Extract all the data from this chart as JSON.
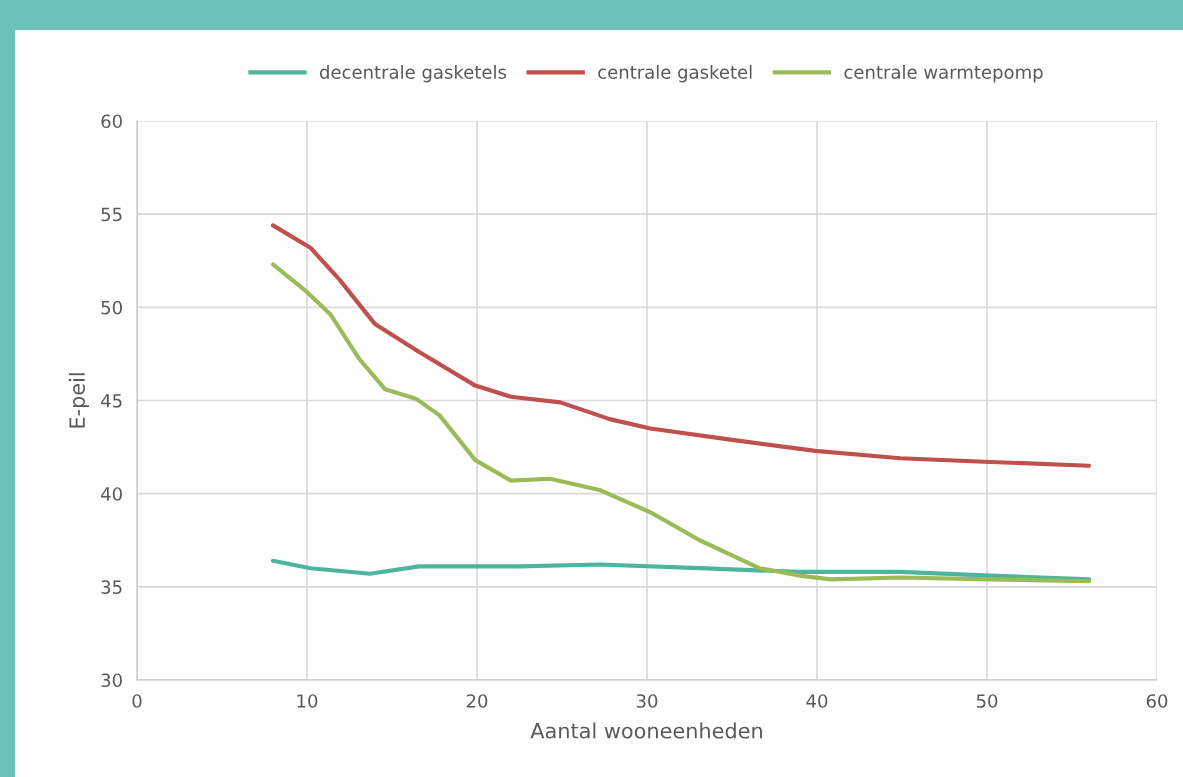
{
  "chart_data": {
    "type": "line",
    "xlabel": "Aantal wooneenheden",
    "ylabel": "E-peil",
    "xlim": [
      0,
      60
    ],
    "xticks": [
      0,
      10,
      20,
      30,
      40,
      50,
      60
    ],
    "ylim": [
      30,
      60
    ],
    "yticks": [
      30,
      35,
      40,
      45,
      50,
      55,
      60
    ],
    "grid": true,
    "legend": "top",
    "marker": "none",
    "line_style": "solid",
    "series": [
      {
        "name": "decentrale gasketels",
        "color": "#4cb59c",
        "x": [
          8,
          10.2,
          13.7,
          16.6,
          22.5,
          27.2,
          33.1,
          39,
          44.9,
          50.2,
          56
        ],
        "values": [
          36.4,
          36.0,
          35.7,
          36.1,
          36.1,
          36.2,
          36.0,
          35.8,
          35.8,
          35.6,
          35.4
        ]
      },
      {
        "name": "centrale gasketel",
        "color": "#c0504d",
        "x": [
          8,
          10.2,
          11.9,
          14,
          16.6,
          19.9,
          22,
          24.9,
          27.8,
          30.2,
          34.9,
          39.9,
          44.9,
          50.2,
          56
        ],
        "values": [
          54.4,
          53.2,
          51.5,
          49.1,
          47.6,
          45.8,
          45.2,
          44.9,
          44.0,
          43.5,
          42.9,
          42.3,
          41.9,
          41.7,
          41.5
        ]
      },
      {
        "name": "centrale warmtepomp",
        "color": "#9bbb59",
        "x": [
          8,
          9.9,
          11.4,
          13.1,
          14.6,
          16.4,
          17.8,
          19.9,
          22,
          24.3,
          27.2,
          30.2,
          33.1,
          36.6,
          39,
          40.8,
          44.9,
          50.2,
          56
        ],
        "values": [
          52.3,
          50.9,
          49.6,
          47.2,
          45.6,
          45.1,
          44.2,
          41.8,
          40.7,
          40.8,
          40.2,
          39.0,
          37.5,
          36.0,
          35.6,
          35.4,
          35.5,
          35.4,
          35.3
        ]
      }
    ]
  }
}
